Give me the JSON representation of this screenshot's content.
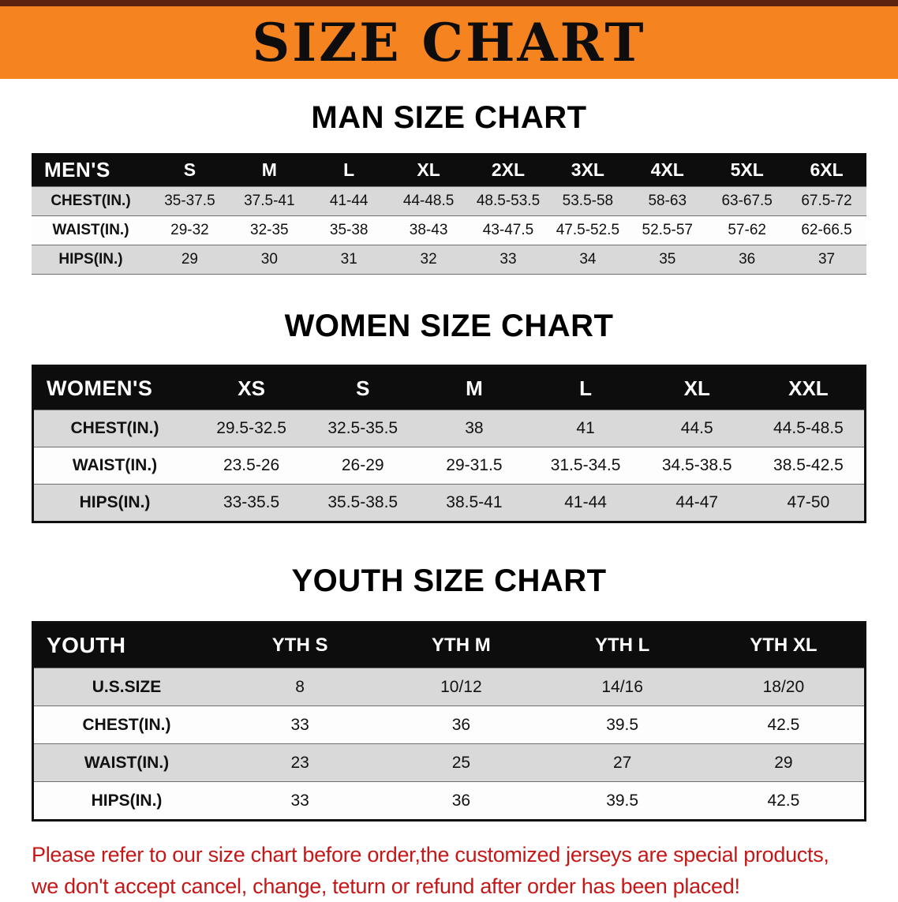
{
  "banner": {
    "title": "SIZE CHART",
    "bg_color": "#f5831f",
    "top_strip_color": "#5c2410"
  },
  "sections": [
    {
      "heading": "MAN SIZE CHART",
      "table": {
        "corner": "MEN'S",
        "columns": [
          "S",
          "M",
          "L",
          "XL",
          "2XL",
          "3XL",
          "4XL",
          "5XL",
          "6XL"
        ],
        "rows": [
          {
            "label": "CHEST(IN.)",
            "values": [
              "35-37.5",
              "37.5-41",
              "41-44",
              "44-48.5",
              "48.5-53.5",
              "53.5-58",
              "58-63",
              "63-67.5",
              "67.5-72"
            ]
          },
          {
            "label": "WAIST(IN.)",
            "values": [
              "29-32",
              "32-35",
              "35-38",
              "38-43",
              "43-47.5",
              "47.5-52.5",
              "52.5-57",
              "57-62",
              "62-66.5"
            ]
          },
          {
            "label": "HIPS(IN.)",
            "values": [
              "29",
              "30",
              "31",
              "32",
              "33",
              "34",
              "35",
              "36",
              "37"
            ]
          }
        ]
      }
    },
    {
      "heading": "WOMEN SIZE CHART",
      "table": {
        "corner": "WOMEN'S",
        "columns": [
          "XS",
          "S",
          "M",
          "L",
          "XL",
          "XXL"
        ],
        "rows": [
          {
            "label": "CHEST(IN.)",
            "values": [
              "29.5-32.5",
              "32.5-35.5",
              "38",
              "41",
              "44.5",
              "44.5-48.5"
            ]
          },
          {
            "label": "WAIST(IN.)",
            "values": [
              "23.5-26",
              "26-29",
              "29-31.5",
              "31.5-34.5",
              "34.5-38.5",
              "38.5-42.5"
            ]
          },
          {
            "label": "HIPS(IN.)",
            "values": [
              "33-35.5",
              "35.5-38.5",
              "38.5-41",
              "41-44",
              "44-47",
              "47-50"
            ]
          }
        ]
      }
    },
    {
      "heading": "YOUTH SIZE CHART",
      "table": {
        "corner": "YOUTH",
        "columns": [
          "YTH S",
          "YTH M",
          "YTH L",
          "YTH XL"
        ],
        "rows": [
          {
            "label": "U.S.SIZE",
            "values": [
              "8",
              "10/12",
              "14/16",
              "18/20"
            ]
          },
          {
            "label": "CHEST(IN.)",
            "values": [
              "33",
              "36",
              "39.5",
              "42.5"
            ]
          },
          {
            "label": "WAIST(IN.)",
            "values": [
              "23",
              "25",
              "27",
              "29"
            ]
          },
          {
            "label": "HIPS(IN.)",
            "values": [
              "33",
              "36",
              "39.5",
              "42.5"
            ]
          }
        ]
      }
    }
  ],
  "disclaimer": {
    "line1": "Please refer to our size chart before order,the customized jerseys are special products,",
    "line2": "we don't accept cancel, change, teturn or refund after order has been placed!",
    "color": "#c51717"
  }
}
